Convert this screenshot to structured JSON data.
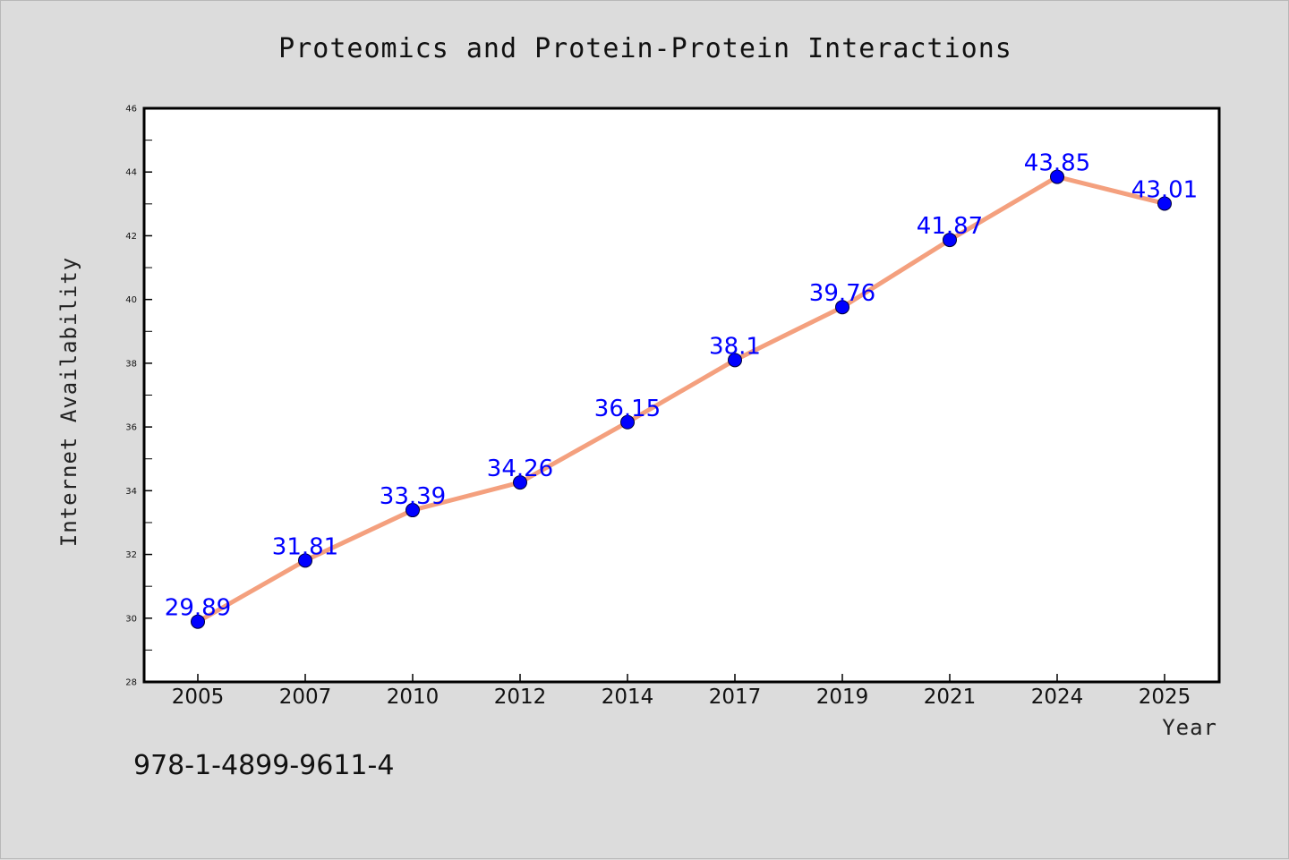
{
  "chart_data": {
    "type": "line",
    "title": "Proteomics and Protein-Protein Interactions",
    "xlabel": "Year",
    "ylabel": "Internet Availability",
    "categories": [
      "2005",
      "2007",
      "2010",
      "2012",
      "2014",
      "2017",
      "2019",
      "2021",
      "2024",
      "2025"
    ],
    "values": [
      29.89,
      31.81,
      33.39,
      34.26,
      36.15,
      38.1,
      39.76,
      41.87,
      43.85,
      43.01
    ],
    "ylim": [
      28,
      46
    ],
    "yticks": [
      28,
      30,
      32,
      34,
      36,
      38,
      40,
      42,
      44,
      46
    ],
    "grid": false,
    "line_color": "#f4a07e",
    "marker_color": "#0000ff",
    "label_color": "#0000ff"
  },
  "footer": {
    "isbn": "978-1-4899-9611-4"
  }
}
